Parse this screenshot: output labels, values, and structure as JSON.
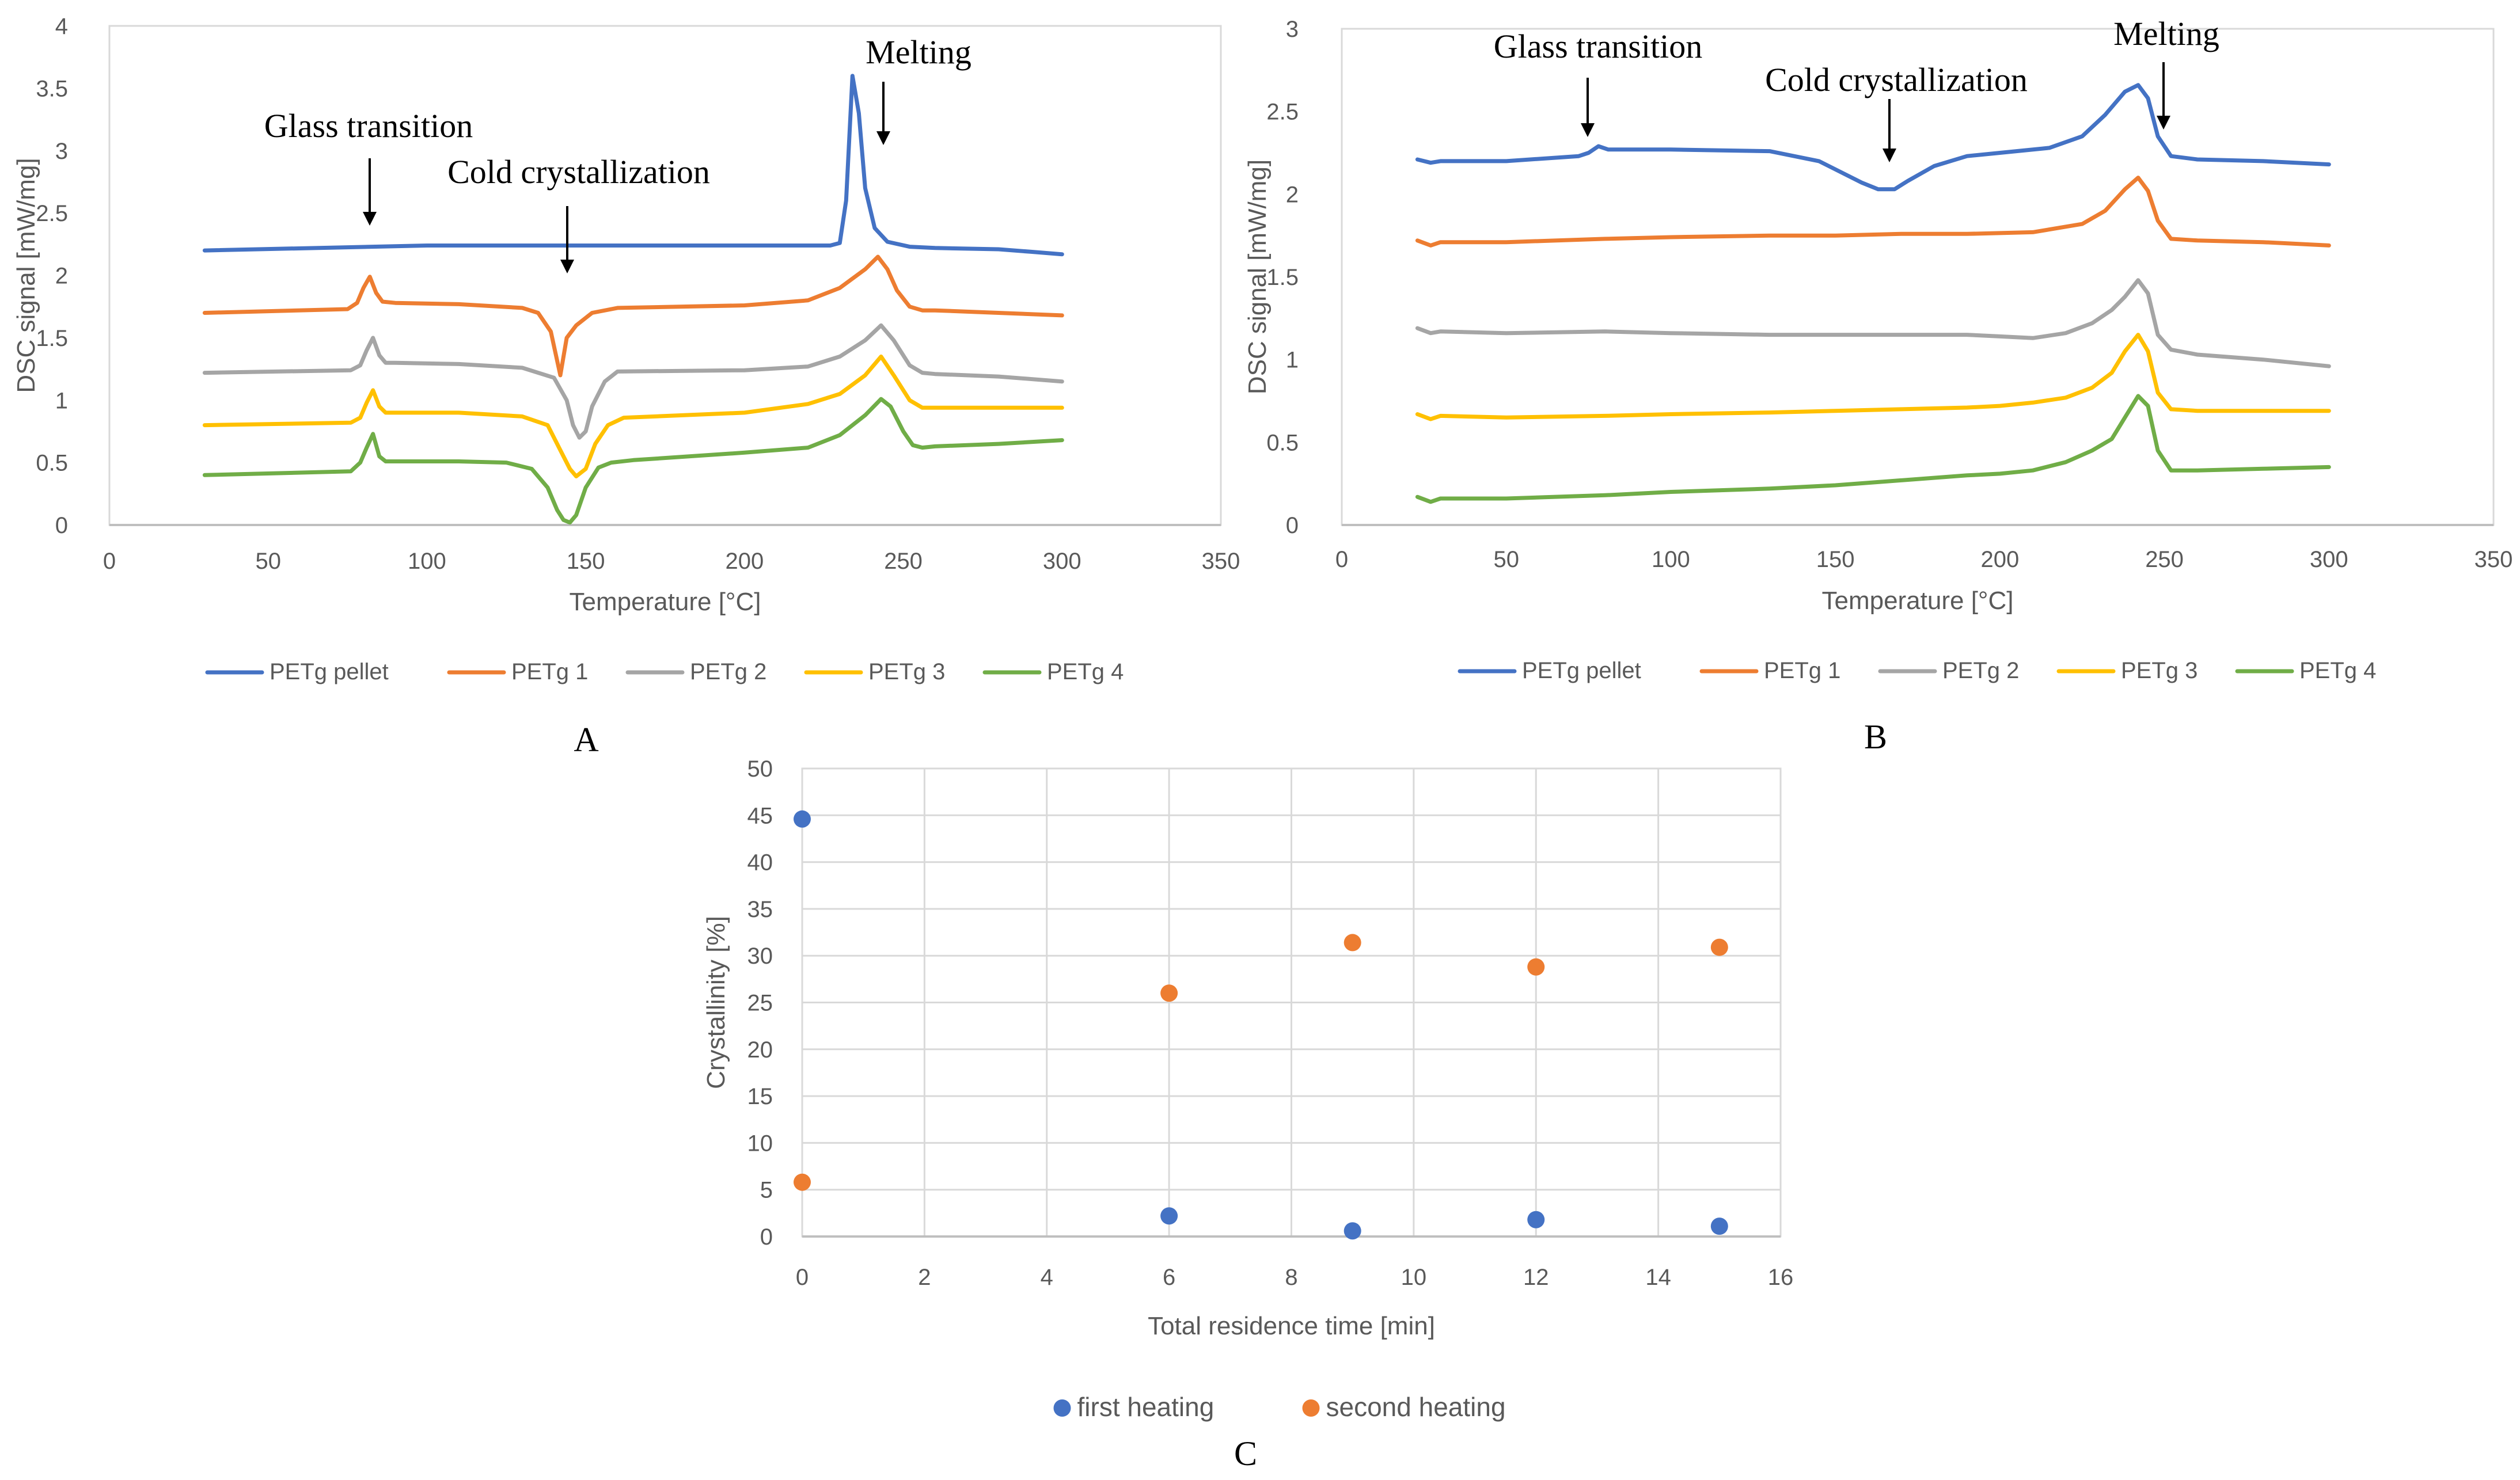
{
  "colors": {
    "PETg pellet": "#4472C4",
    "PETg 1": "#ED7D31",
    "PETg 2": "#A5A5A5",
    "PETg 3": "#FFC000",
    "PETg 4": "#70AD47",
    "first heating": "#4472C4",
    "second heating": "#ED7D31",
    "grid": "#D9D9D9",
    "axis_text": "#595959"
  },
  "chart_data": [
    {
      "id": "A",
      "panel_label": "A",
      "type": "line",
      "xlabel": "Temperature [°C]",
      "ylabel": "DSC signal [mW/mg]",
      "xlim": [
        0,
        350
      ],
      "ylim": [
        0,
        4
      ],
      "xticks": [
        0,
        50,
        100,
        150,
        200,
        250,
        300,
        350
      ],
      "yticks": [
        0,
        0.5,
        1,
        1.5,
        2,
        2.5,
        3,
        3.5,
        4
      ],
      "grid": "horizontal",
      "legend": "bottom",
      "annotations": [
        {
          "text": "Glass transition",
          "x": 82,
          "y": 2.45
        },
        {
          "text": "Cold crystallization",
          "x": 144,
          "y": 2.1
        },
        {
          "text": "Melting",
          "x": 243,
          "y": 3.05
        }
      ],
      "series": [
        {
          "name": "PETg pellet",
          "x": [
            30,
            100,
            150,
            200,
            227,
            230,
            232,
            234,
            236,
            238,
            241,
            245,
            252,
            260,
            280,
            290,
            300
          ],
          "y": [
            2.2,
            2.24,
            2.24,
            2.24,
            2.24,
            2.26,
            2.6,
            3.6,
            3.3,
            2.7,
            2.38,
            2.27,
            2.23,
            2.22,
            2.21,
            2.19,
            2.17
          ]
        },
        {
          "name": "PETg 1",
          "x": [
            30,
            75,
            78,
            80,
            82,
            84,
            86,
            90,
            110,
            130,
            135,
            139,
            142,
            144,
            147,
            152,
            160,
            200,
            220,
            230,
            238,
            242,
            245,
            248,
            252,
            256,
            260,
            280,
            300
          ],
          "y": [
            1.7,
            1.73,
            1.78,
            1.9,
            1.99,
            1.86,
            1.79,
            1.78,
            1.77,
            1.74,
            1.7,
            1.55,
            1.2,
            1.5,
            1.6,
            1.7,
            1.74,
            1.76,
            1.8,
            1.9,
            2.05,
            2.15,
            2.05,
            1.88,
            1.75,
            1.72,
            1.72,
            1.7,
            1.68
          ]
        },
        {
          "name": "PETg 2",
          "x": [
            30,
            76,
            79,
            81,
            83,
            85,
            87,
            90,
            110,
            130,
            140,
            144,
            146,
            148,
            150,
            152,
            156,
            160,
            200,
            220,
            230,
            238,
            243,
            247,
            252,
            256,
            260,
            280,
            300
          ],
          "y": [
            1.22,
            1.24,
            1.28,
            1.4,
            1.5,
            1.36,
            1.3,
            1.3,
            1.29,
            1.26,
            1.18,
            1.0,
            0.8,
            0.7,
            0.75,
            0.95,
            1.15,
            1.23,
            1.24,
            1.27,
            1.35,
            1.48,
            1.6,
            1.48,
            1.28,
            1.22,
            1.21,
            1.19,
            1.15
          ]
        },
        {
          "name": "PETg 3",
          "x": [
            30,
            76,
            79,
            81,
            83,
            85,
            87,
            90,
            110,
            130,
            138,
            142,
            145,
            147,
            150,
            153,
            157,
            162,
            200,
            220,
            230,
            238,
            243,
            247,
            252,
            256,
            260,
            280,
            300
          ],
          "y": [
            0.8,
            0.82,
            0.86,
            0.98,
            1.08,
            0.95,
            0.9,
            0.9,
            0.9,
            0.87,
            0.8,
            0.6,
            0.45,
            0.39,
            0.45,
            0.65,
            0.8,
            0.86,
            0.9,
            0.97,
            1.05,
            1.2,
            1.35,
            1.2,
            1.0,
            0.94,
            0.94,
            0.94,
            0.94
          ]
        },
        {
          "name": "PETg 4",
          "x": [
            30,
            76,
            79,
            81,
            83,
            85,
            87,
            90,
            110,
            125,
            133,
            138,
            141,
            143,
            145,
            147,
            150,
            154,
            158,
            165,
            200,
            220,
            230,
            238,
            243,
            246,
            250,
            253,
            256,
            260,
            280,
            300
          ],
          "y": [
            0.4,
            0.43,
            0.5,
            0.62,
            0.73,
            0.55,
            0.51,
            0.51,
            0.51,
            0.5,
            0.45,
            0.3,
            0.12,
            0.04,
            0.02,
            0.08,
            0.3,
            0.46,
            0.5,
            0.52,
            0.58,
            0.62,
            0.72,
            0.88,
            1.01,
            0.95,
            0.75,
            0.64,
            0.62,
            0.63,
            0.65,
            0.68
          ]
        }
      ]
    },
    {
      "id": "B",
      "panel_label": "B",
      "type": "line",
      "xlabel": "Temperature [°C]",
      "ylabel": "DSC signal [mW/mg]",
      "xlim": [
        0,
        350
      ],
      "ylim": [
        0,
        3
      ],
      "xticks": [
        0,
        50,
        100,
        150,
        200,
        250,
        300,
        350
      ],
      "yticks": [
        0,
        0.5,
        1,
        1.5,
        2,
        2.5,
        3
      ],
      "grid": "horizontal",
      "legend": "bottom",
      "annotations": [
        {
          "text": "Glass transition",
          "x": 77,
          "y": 2.55
        },
        {
          "text": "Cold crystallization",
          "x": 167,
          "y": 2.35
        },
        {
          "text": "Melting",
          "x": 250,
          "y": 2.68
        }
      ],
      "series": [
        {
          "name": "PETg pellet",
          "x": [
            23,
            27,
            30,
            50,
            72,
            75,
            78,
            81,
            100,
            130,
            145,
            158,
            163,
            168,
            172,
            180,
            190,
            200,
            215,
            225,
            232,
            238,
            242,
            245,
            248,
            252,
            260,
            280,
            300
          ],
          "y": [
            2.21,
            2.19,
            2.2,
            2.2,
            2.23,
            2.25,
            2.29,
            2.27,
            2.27,
            2.26,
            2.2,
            2.07,
            2.03,
            2.03,
            2.08,
            2.17,
            2.23,
            2.25,
            2.28,
            2.35,
            2.48,
            2.62,
            2.66,
            2.58,
            2.35,
            2.23,
            2.21,
            2.2,
            2.18
          ]
        },
        {
          "name": "PETg 1",
          "x": [
            23,
            27,
            30,
            50,
            80,
            100,
            130,
            150,
            170,
            190,
            210,
            225,
            232,
            238,
            242,
            245,
            248,
            252,
            260,
            280,
            300
          ],
          "y": [
            1.72,
            1.69,
            1.71,
            1.71,
            1.73,
            1.74,
            1.75,
            1.75,
            1.76,
            1.76,
            1.77,
            1.82,
            1.9,
            2.03,
            2.1,
            2.02,
            1.84,
            1.73,
            1.72,
            1.71,
            1.69
          ]
        },
        {
          "name": "PETg 2",
          "x": [
            23,
            27,
            30,
            50,
            80,
            100,
            130,
            150,
            170,
            190,
            200,
            210,
            220,
            228,
            234,
            238,
            242,
            245,
            248,
            252,
            260,
            280,
            300
          ],
          "y": [
            1.19,
            1.16,
            1.17,
            1.16,
            1.17,
            1.16,
            1.15,
            1.15,
            1.15,
            1.15,
            1.14,
            1.13,
            1.16,
            1.22,
            1.3,
            1.38,
            1.48,
            1.4,
            1.15,
            1.06,
            1.03,
            1.0,
            0.96
          ]
        },
        {
          "name": "PETg 3",
          "x": [
            23,
            27,
            30,
            50,
            80,
            100,
            130,
            150,
            170,
            190,
            200,
            210,
            220,
            228,
            234,
            238,
            242,
            245,
            248,
            252,
            260,
            280,
            300
          ],
          "y": [
            0.67,
            0.64,
            0.66,
            0.65,
            0.66,
            0.67,
            0.68,
            0.69,
            0.7,
            0.71,
            0.72,
            0.74,
            0.77,
            0.83,
            0.92,
            1.05,
            1.15,
            1.05,
            0.8,
            0.7,
            0.69,
            0.69,
            0.69
          ]
        },
        {
          "name": "PETg 4",
          "x": [
            23,
            27,
            30,
            50,
            80,
            100,
            130,
            150,
            170,
            190,
            200,
            210,
            220,
            228,
            234,
            238,
            242,
            245,
            248,
            252,
            260,
            280,
            300
          ],
          "y": [
            0.17,
            0.14,
            0.16,
            0.16,
            0.18,
            0.2,
            0.22,
            0.24,
            0.27,
            0.3,
            0.31,
            0.33,
            0.38,
            0.45,
            0.52,
            0.65,
            0.78,
            0.72,
            0.45,
            0.33,
            0.33,
            0.34,
            0.35
          ]
        }
      ]
    },
    {
      "id": "C",
      "panel_label": "C",
      "type": "scatter",
      "xlabel": "Total residence time [min]",
      "ylabel": "Crystallinity [%]",
      "xlim": [
        0,
        16
      ],
      "ylim": [
        0,
        50
      ],
      "xticks": [
        0,
        2,
        4,
        6,
        8,
        10,
        12,
        14,
        16
      ],
      "yticks": [
        0,
        5,
        10,
        15,
        20,
        25,
        30,
        35,
        40,
        45,
        50
      ],
      "grid": "both",
      "legend": "bottom",
      "series": [
        {
          "name": "first heating",
          "x": [
            0,
            6,
            9,
            12,
            15
          ],
          "y": [
            44.6,
            2.2,
            0.6,
            1.8,
            1.1
          ]
        },
        {
          "name": "second heating",
          "x": [
            0,
            6,
            9,
            12,
            15
          ],
          "y": [
            5.8,
            26.0,
            31.4,
            28.8,
            30.9
          ]
        }
      ]
    }
  ]
}
